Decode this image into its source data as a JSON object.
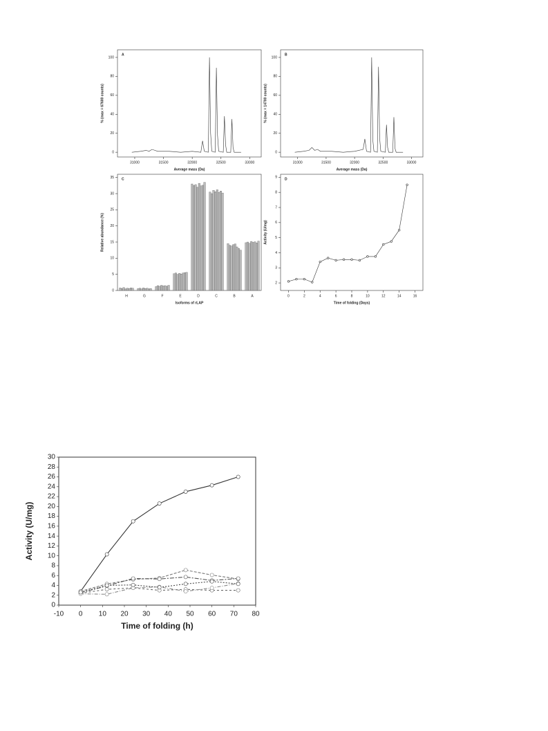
{
  "chart_data": [
    {
      "type": "line",
      "panel": "A",
      "xlabel": "Average mass (Da)",
      "ylabel": "% (max = 67600 counts)",
      "x": [
        30950,
        31100,
        31200,
        31250,
        31300,
        31350,
        31400,
        31600,
        31800,
        32000,
        32150,
        32180,
        32210,
        32280,
        32300,
        32320,
        32340,
        32400,
        32420,
        32440,
        32460,
        32540,
        32560,
        32580,
        32600,
        32670,
        32690,
        32710,
        32730,
        32850
      ],
      "values": [
        0,
        1,
        2,
        1,
        3,
        2,
        1,
        1,
        0,
        1,
        0,
        12,
        1,
        0,
        100,
        20,
        1,
        0,
        89,
        18,
        1,
        0,
        38,
        8,
        0,
        0,
        35,
        5,
        0,
        0
      ],
      "color": "#333333",
      "xlim": [
        30700,
        33200
      ],
      "xticks": [
        31000,
        31500,
        32000,
        32500,
        33000
      ],
      "ylim": [
        -5,
        108
      ],
      "yticks": [
        0,
        20,
        40,
        60,
        80,
        100
      ]
    },
    {
      "type": "line",
      "panel": "B",
      "xlabel": "Average mass (Da)",
      "ylabel": "% (max = 14700 counts)",
      "x": [
        30950,
        31100,
        31200,
        31250,
        31300,
        31350,
        31400,
        31600,
        31800,
        32000,
        32150,
        32180,
        32210,
        32280,
        32300,
        32320,
        32340,
        32400,
        32420,
        32440,
        32460,
        32540,
        32560,
        32580,
        32600,
        32670,
        32690,
        32710,
        32730,
        32850
      ],
      "values": [
        0,
        1,
        2,
        5,
        2,
        3,
        1,
        1,
        0,
        1,
        3,
        14,
        1,
        0,
        100,
        13,
        1,
        0,
        90,
        15,
        1,
        0,
        29,
        5,
        0,
        0,
        37,
        4,
        0,
        0
      ],
      "color": "#333333",
      "xlim": [
        30700,
        33200
      ],
      "xticks": [
        31000,
        31500,
        32000,
        32500,
        33000
      ],
      "ylim": [
        -5,
        108
      ],
      "yticks": [
        0,
        20,
        40,
        60,
        80,
        100
      ]
    },
    {
      "type": "bar",
      "panel": "C",
      "xlabel": "Isoforms of rLAP",
      "ylabel": "Relative abundance (%)",
      "categories": [
        "H",
        "G",
        "F",
        "E",
        "D",
        "C",
        "B",
        "A"
      ],
      "values": [
        [
          0.8,
          0.6,
          0.9,
          0.5,
          0.7,
          0.6,
          0.8,
          0.7
        ],
        [
          0.6,
          0.7,
          0.5,
          0.8,
          0.6,
          0.7,
          0.5,
          0.6
        ],
        [
          1.2,
          1.5,
          1.3,
          1.6,
          1.4,
          1.5,
          1.3,
          1.6
        ],
        [
          5.2,
          5.4,
          5.0,
          5.3,
          5.1,
          5.4,
          5.5,
          5.6
        ],
        [
          33,
          32.5,
          32.8,
          32,
          33.2,
          32.4,
          32.6,
          33.5
        ],
        [
          30.5,
          30,
          31,
          30.6,
          31.2,
          30.4,
          30.8,
          30.2
        ],
        [
          14.5,
          14,
          13.8,
          14.2,
          14.4,
          13.5,
          13,
          12.5
        ],
        [
          14.8,
          15,
          14.6,
          15.2,
          14.9,
          15.1,
          14.7,
          15.3
        ]
      ],
      "color": "#bbbbbb",
      "ylim": [
        0,
        36
      ],
      "yticks": [
        0,
        5,
        10,
        15,
        20,
        25,
        30,
        35
      ]
    },
    {
      "type": "line",
      "panel": "D",
      "xlabel": "Time of folding (Days)",
      "ylabel": "Activity (U/mg)",
      "x": [
        0,
        1,
        2,
        3,
        4,
        5,
        6,
        7,
        8,
        9,
        10,
        11,
        12,
        13,
        14,
        15
      ],
      "values": [
        2.1,
        2.25,
        2.25,
        2.05,
        3.4,
        3.65,
        3.5,
        3.55,
        3.55,
        3.5,
        3.75,
        3.75,
        4.55,
        4.75,
        5.5,
        8.5
      ],
      "color": "#333333",
      "xlim": [
        -1,
        17
      ],
      "xticks": [
        0,
        2,
        4,
        6,
        8,
        10,
        12,
        14,
        16
      ],
      "ylim": [
        1.5,
        9.2
      ],
      "yticks": [
        2,
        3,
        4,
        5,
        6,
        7,
        8,
        9
      ]
    },
    {
      "type": "line",
      "xlabel": "Time of folding (h)",
      "ylabel": "Activity (U/mg)",
      "x": [
        0,
        12,
        24,
        36,
        48,
        60,
        72
      ],
      "series": [
        {
          "color": "#333333",
          "values": [
            2.8,
            10.3,
            17,
            20.6,
            23,
            24.3,
            26
          ]
        },
        {
          "color": "#777777",
          "values": [
            2.8,
            4.3,
            5.2,
            5.5,
            7.1,
            6.1,
            5.3
          ]
        },
        {
          "color": "#555555",
          "values": [
            2.5,
            3.9,
            5.4,
            5.3,
            5.7,
            5.0,
            5.4
          ]
        },
        {
          "color": "#666666",
          "values": [
            2.4,
            3.2,
            3.5,
            3.0,
            3.2,
            3.0,
            3.0
          ]
        },
        {
          "color": "#888888",
          "values": [
            2.3,
            2.2,
            3.5,
            3.7,
            2.8,
            3.5,
            4.4
          ]
        },
        {
          "color": "#444444",
          "values": [
            2.6,
            4.0,
            4.1,
            3.6,
            4.3,
            4.8,
            4.3
          ]
        }
      ],
      "xlim": [
        -10,
        80
      ],
      "xticks": [
        -10,
        0,
        10,
        20,
        30,
        40,
        50,
        60,
        70,
        80
      ],
      "ylim": [
        0,
        30
      ],
      "yticks": [
        0,
        2,
        4,
        6,
        8,
        10,
        12,
        14,
        16,
        18,
        20,
        22,
        24,
        26,
        28,
        30
      ]
    }
  ]
}
